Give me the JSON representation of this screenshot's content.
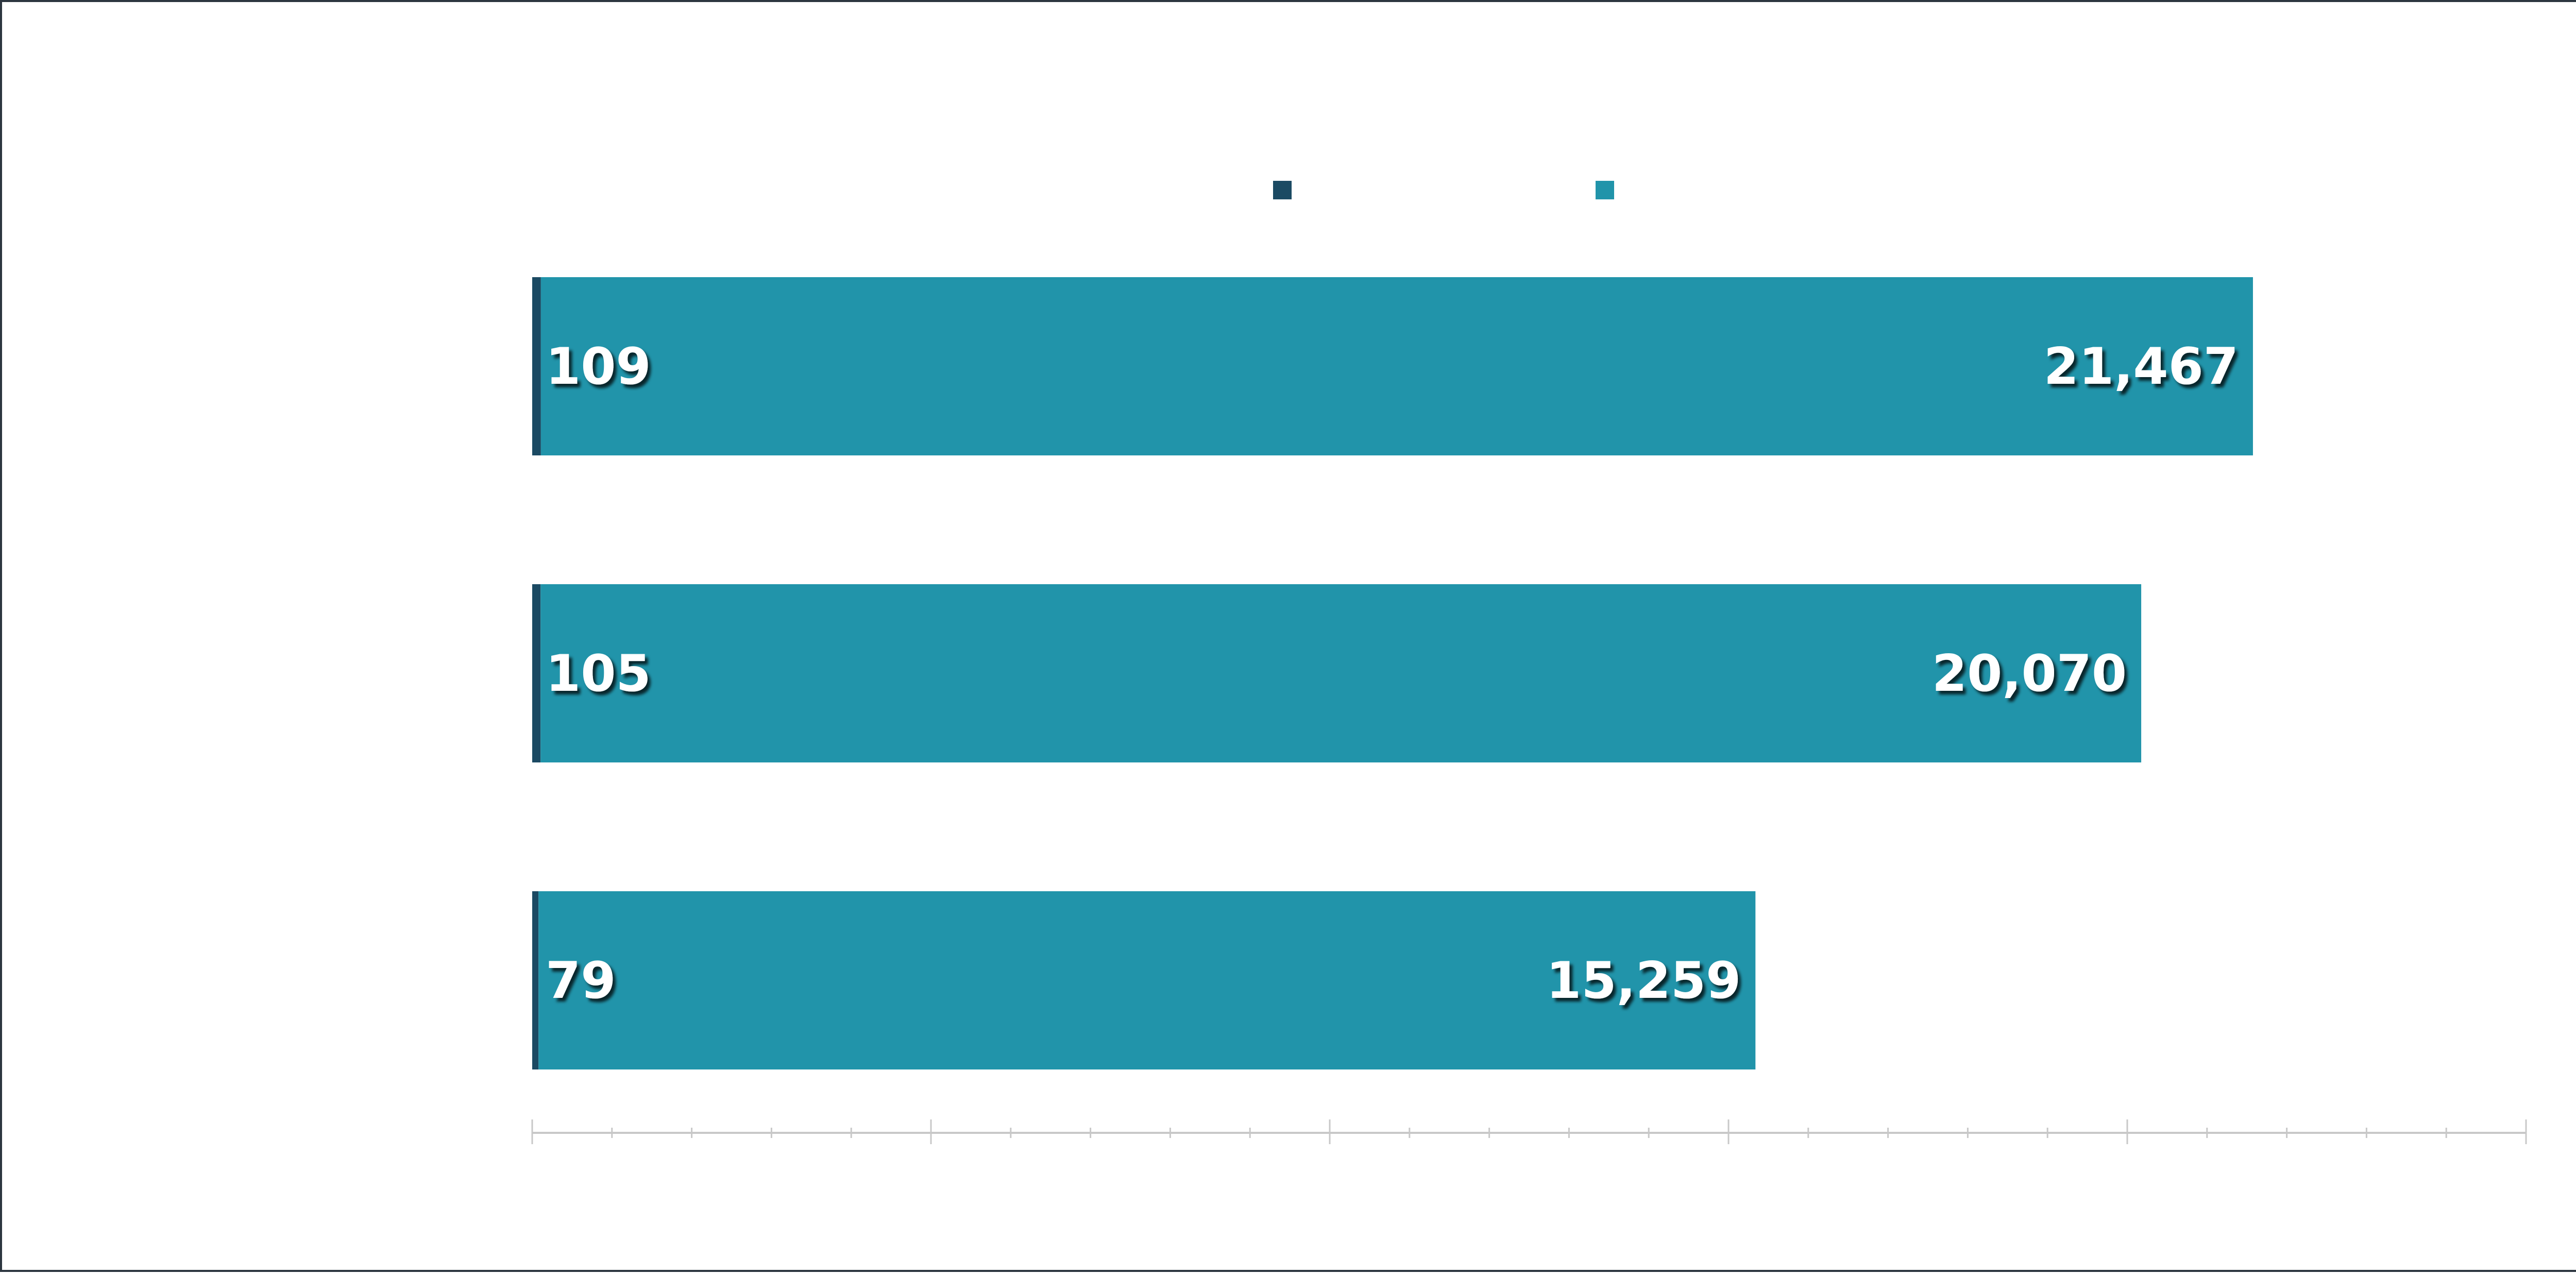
{
  "chart_data": {
    "type": "bar",
    "orientation": "horizontal",
    "stacked": true,
    "categories": [
      "",
      "",
      ""
    ],
    "series": [
      {
        "color": "#1b4a63",
        "values": [
          109,
          105,
          79
        ]
      },
      {
        "color": "#2194aa",
        "values": [
          21467,
          20070,
          15259
        ]
      }
    ],
    "labels_series_0": [
      "109",
      "105",
      "79"
    ],
    "labels_series_1": [
      "21,467",
      "20,070",
      "15,259"
    ],
    "title": "",
    "xlabel": "",
    "ylabel": "",
    "xlim": [
      0,
      25000
    ],
    "grid": false,
    "legend": "top-center"
  }
}
